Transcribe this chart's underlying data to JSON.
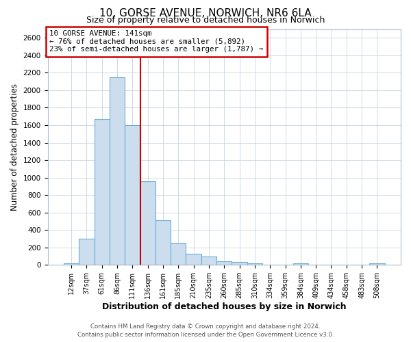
{
  "title": "10, GORSE AVENUE, NORWICH, NR6 6LA",
  "subtitle": "Size of property relative to detached houses in Norwich",
  "xlabel": "Distribution of detached houses by size in Norwich",
  "ylabel": "Number of detached properties",
  "bar_labels": [
    "12sqm",
    "37sqm",
    "61sqm",
    "86sqm",
    "111sqm",
    "136sqm",
    "161sqm",
    "185sqm",
    "210sqm",
    "235sqm",
    "260sqm",
    "285sqm",
    "310sqm",
    "334sqm",
    "359sqm",
    "384sqm",
    "409sqm",
    "434sqm",
    "458sqm",
    "483sqm",
    "508sqm"
  ],
  "bar_values": [
    20,
    300,
    1670,
    2150,
    1600,
    960,
    510,
    250,
    125,
    100,
    40,
    35,
    15,
    5,
    5,
    15,
    5,
    5,
    5,
    5,
    20
  ],
  "bar_color": "#ccdded",
  "bar_edge_color": "#6aadd5",
  "vline_color": "#cc0000",
  "annotation_title": "10 GORSE AVENUE: 141sqm",
  "annotation_line1": "← 76% of detached houses are smaller (5,892)",
  "annotation_line2": "23% of semi-detached houses are larger (1,787) →",
  "annotation_box_color": "#ffffff",
  "annotation_border_color": "#cc0000",
  "ylim": [
    0,
    2700
  ],
  "yticks": [
    0,
    200,
    400,
    600,
    800,
    1000,
    1200,
    1400,
    1600,
    1800,
    2000,
    2200,
    2400,
    2600
  ],
  "footer1": "Contains HM Land Registry data © Crown copyright and database right 2024.",
  "footer2": "Contains public sector information licensed under the Open Government Licence v3.0.",
  "bg_color": "#ffffff",
  "plot_bg_color": "#ffffff",
  "grid_color": "#c8d4e0"
}
